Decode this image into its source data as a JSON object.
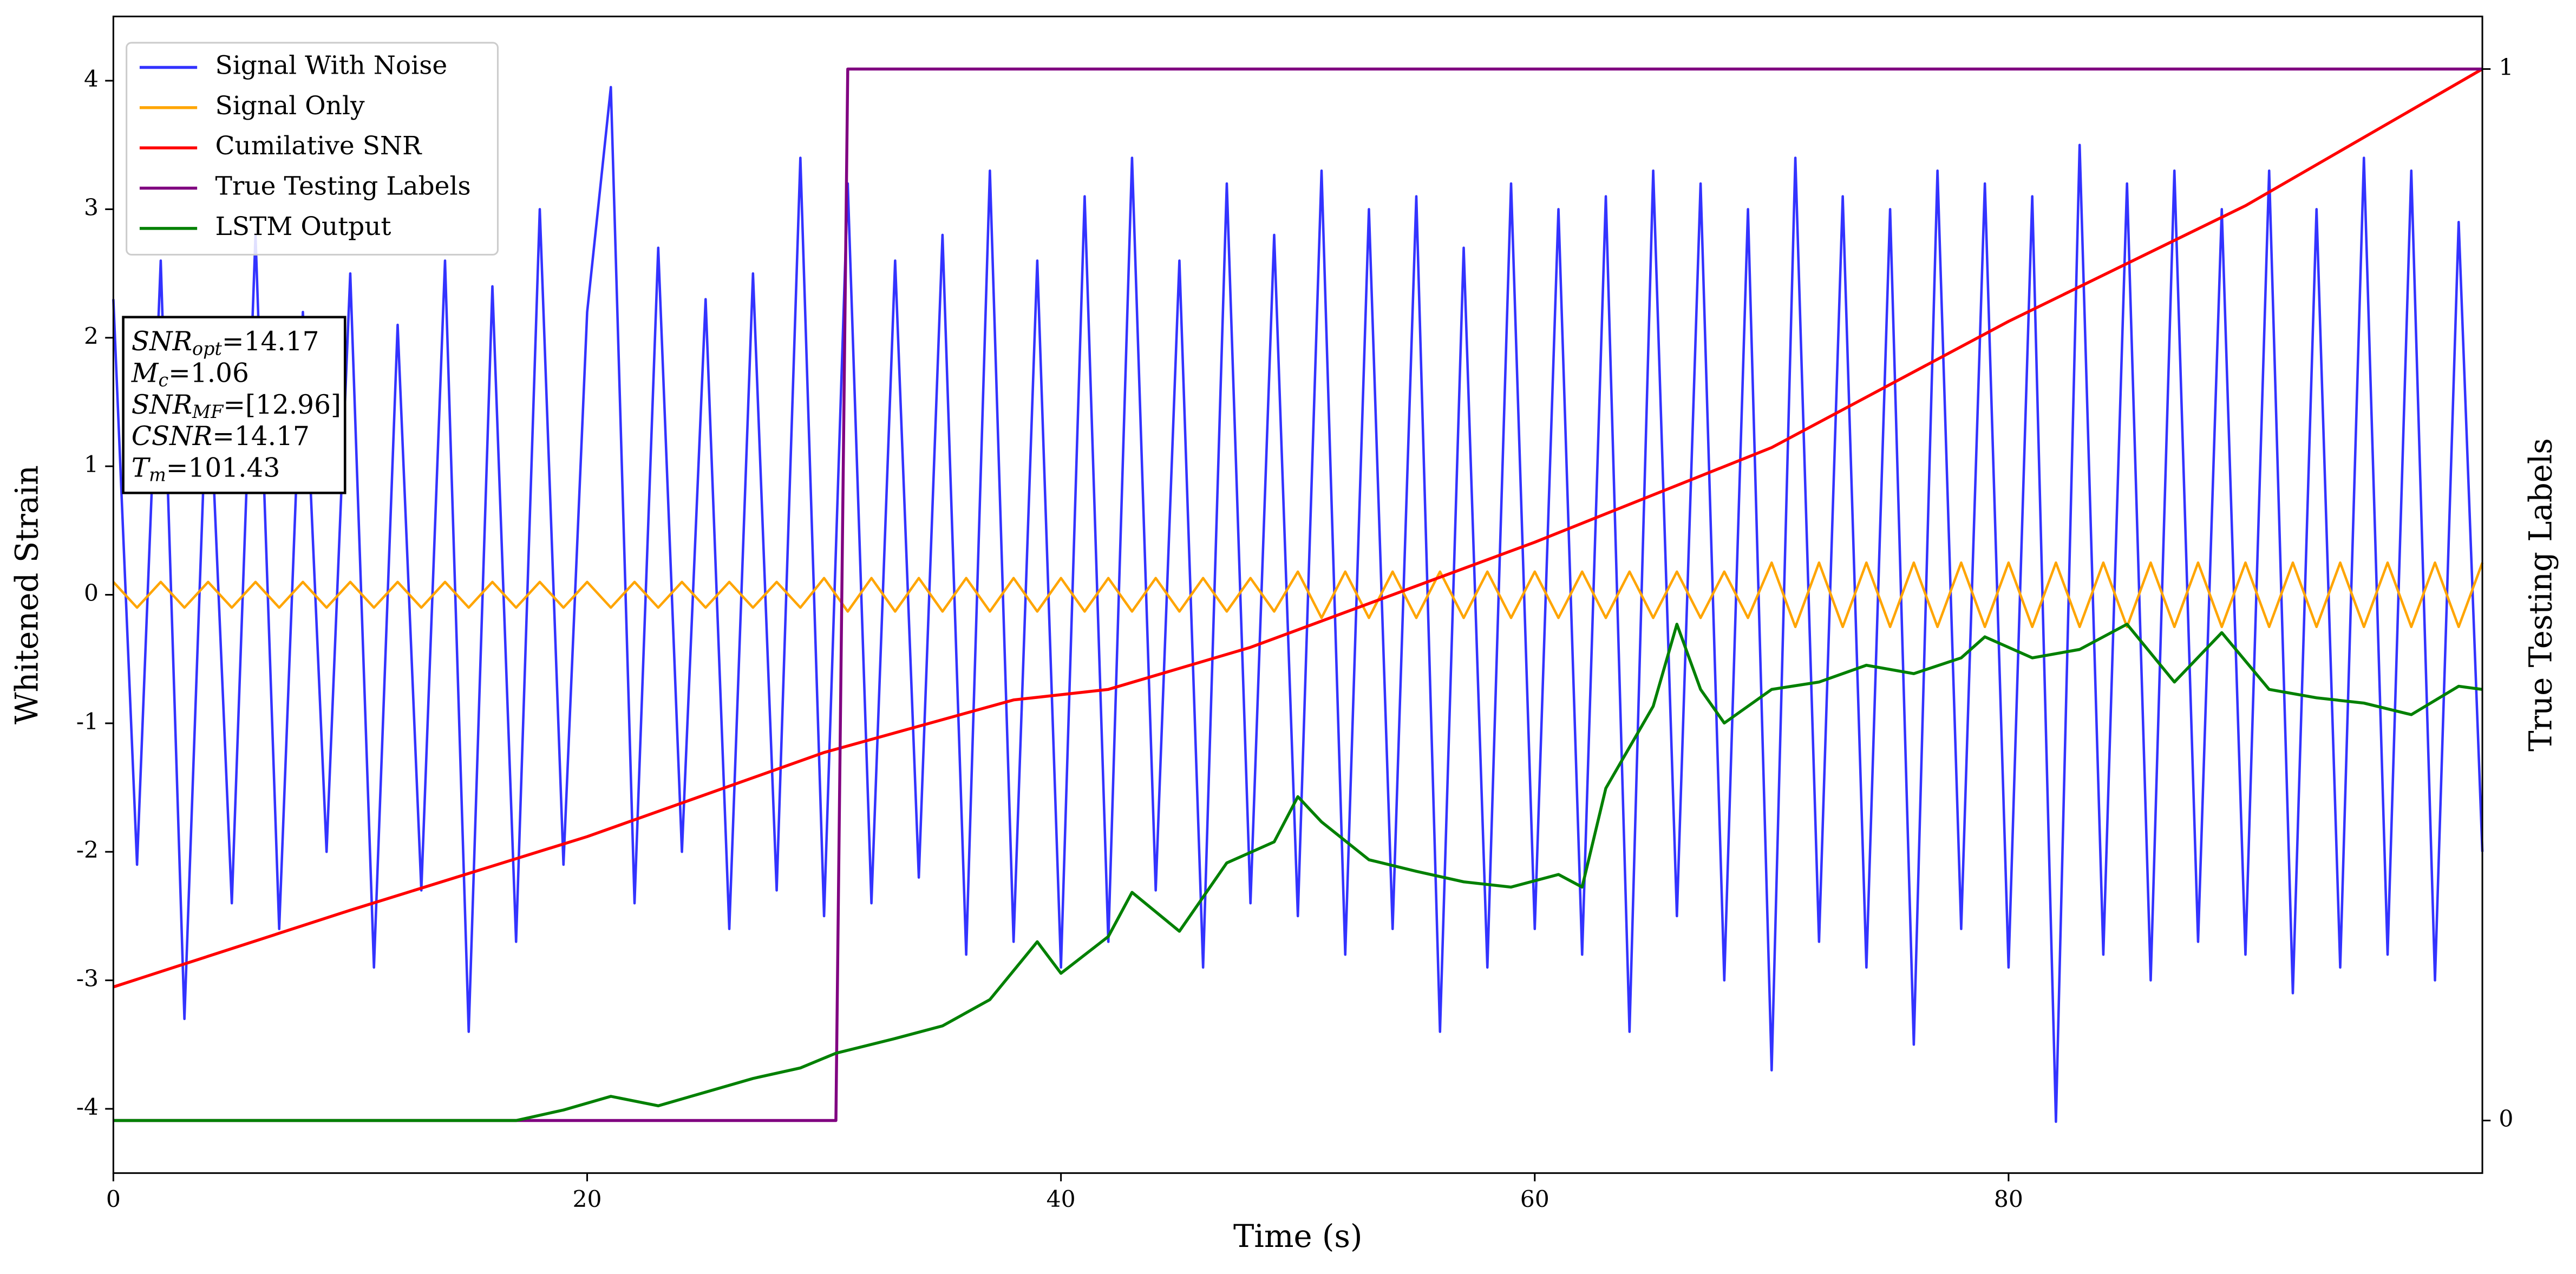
{
  "chart_data": {
    "type": "line",
    "xlabel": "Time (s)",
    "ylabel": "Whitened Strain",
    "y2label": "True Testing Labels",
    "xlim": [
      0,
      100
    ],
    "ylim": [
      -4.5,
      4.5
    ],
    "y2lim": [
      -0.05,
      1.05
    ],
    "xticks": [
      0,
      20,
      40,
      60,
      80
    ],
    "yticks": [
      -4,
      -3,
      -2,
      -1,
      0,
      1,
      2,
      3,
      4
    ],
    "y2ticks": [
      0,
      1
    ],
    "legend": "upper-left",
    "x": [
      0,
      1,
      2,
      3,
      4,
      5,
      6,
      7,
      8,
      9,
      10,
      11,
      12,
      13,
      14,
      15,
      16,
      17,
      18,
      19,
      20,
      21,
      22,
      23,
      24,
      25,
      26,
      27,
      28,
      29,
      30,
      31,
      32,
      33,
      34,
      35,
      36,
      37,
      38,
      39,
      40,
      41,
      42,
      43,
      44,
      45,
      46,
      47,
      48,
      49,
      50,
      51,
      52,
      53,
      54,
      55,
      56,
      57,
      58,
      59,
      60,
      61,
      62,
      63,
      64,
      65,
      66,
      67,
      68,
      69,
      70,
      71,
      72,
      73,
      74,
      75,
      76,
      77,
      78,
      79,
      80,
      81,
      82,
      83,
      84,
      85,
      86,
      87,
      88,
      89,
      90,
      91,
      92,
      93,
      94,
      95,
      96,
      97,
      98,
      99,
      100
    ],
    "series": [
      {
        "name": "Signal With Noise",
        "color": "#3333ff",
        "values": [
          2.3,
          -2.1,
          2.6,
          -3.3,
          1.9,
          -2.4,
          2.8,
          -2.6,
          2.2,
          -2.0,
          2.5,
          -2.9,
          2.1,
          -2.3,
          2.6,
          -3.4,
          2.4,
          -2.7,
          3.0,
          -2.1,
          2.2,
          3.95,
          -2.4,
          2.7,
          -2.0,
          2.3,
          -2.6,
          2.5,
          -2.3,
          3.4,
          -2.5,
          3.2,
          -2.4,
          2.6,
          -2.2,
          2.8,
          -2.8,
          3.3,
          -2.7,
          2.6,
          -2.9,
          3.1,
          -2.7,
          3.4,
          -2.3,
          2.6,
          -2.9,
          3.2,
          -2.4,
          2.8,
          -2.5,
          3.3,
          -2.8,
          3.0,
          -2.6,
          3.1,
          -3.4,
          2.7,
          -2.9,
          3.2,
          -2.6,
          3.0,
          -2.8,
          3.1,
          -3.4,
          3.3,
          -2.5,
          3.2,
          -3.0,
          3.0,
          -3.7,
          3.4,
          -2.7,
          3.1,
          -2.9,
          3.0,
          -3.5,
          3.3,
          -2.6,
          3.2,
          -2.9,
          3.1,
          -4.1,
          3.5,
          -2.8,
          3.2,
          -3.0,
          3.3,
          -2.7,
          3.0,
          -2.8,
          3.3,
          -3.1,
          3.0,
          -2.9,
          3.4,
          -2.8,
          3.3,
          -3.0,
          2.9,
          -2.0
        ]
      },
      {
        "name": "Signal Only",
        "color": "#ffa500",
        "values": [
          0.1,
          -0.1,
          0.1,
          -0.1,
          0.1,
          -0.1,
          0.1,
          -0.1,
          0.1,
          -0.1,
          0.1,
          -0.1,
          0.1,
          -0.1,
          0.1,
          -0.1,
          0.1,
          -0.1,
          0.1,
          -0.1,
          0.1,
          -0.1,
          0.1,
          -0.1,
          0.1,
          -0.1,
          0.1,
          -0.1,
          0.1,
          -0.1,
          0.13,
          -0.13,
          0.13,
          -0.13,
          0.13,
          -0.13,
          0.13,
          -0.13,
          0.13,
          -0.13,
          0.13,
          -0.13,
          0.13,
          -0.13,
          0.13,
          -0.13,
          0.13,
          -0.13,
          0.13,
          -0.13,
          0.18,
          -0.18,
          0.18,
          -0.18,
          0.18,
          -0.18,
          0.18,
          -0.18,
          0.18,
          -0.18,
          0.18,
          -0.18,
          0.18,
          -0.18,
          0.18,
          -0.18,
          0.18,
          -0.18,
          0.18,
          -0.18,
          0.25,
          -0.25,
          0.25,
          -0.25,
          0.25,
          -0.25,
          0.25,
          -0.25,
          0.25,
          -0.25,
          0.25,
          -0.25,
          0.25,
          -0.25,
          0.25,
          -0.25,
          0.25,
          -0.25,
          0.25,
          -0.25,
          0.25,
          -0.25,
          0.25,
          -0.25,
          0.25,
          -0.25,
          0.25,
          -0.25,
          0.25,
          -0.25,
          0.25
        ]
      },
      {
        "name": "Cumilative SNR",
        "color": "#ff0000",
        "axis": "y2",
        "x": [
          0,
          10,
          20,
          30,
          38,
          42,
          48,
          54,
          60,
          70,
          80,
          90,
          100
        ],
        "values": [
          0.127,
          0.2,
          0.27,
          0.35,
          0.4,
          0.41,
          0.45,
          0.5,
          0.55,
          0.64,
          0.76,
          0.87,
          1.0
        ]
      },
      {
        "name": "True Testing Labels",
        "color": "#800080",
        "axis": "y2",
        "x": [
          0,
          30.5,
          31,
          100
        ],
        "values": [
          0,
          0,
          1,
          1
        ]
      },
      {
        "name": "LSTM Output",
        "color": "#008000",
        "axis": "y2",
        "x": [
          0,
          17,
          19,
          21,
          23,
          25,
          27,
          29,
          30.5,
          33,
          35,
          37,
          39,
          40,
          42,
          43,
          45,
          47,
          49,
          50,
          51,
          53,
          55,
          57,
          59,
          61,
          62,
          63,
          64,
          65,
          66,
          67,
          68,
          70,
          72,
          74,
          76,
          78,
          79,
          81,
          83,
          85,
          87,
          89,
          91,
          93,
          95,
          97,
          99,
          100
        ],
        "values": [
          0,
          0,
          0.01,
          0.023,
          0.014,
          0.027,
          0.04,
          0.05,
          0.064,
          0.078,
          0.09,
          0.115,
          0.17,
          0.14,
          0.175,
          0.217,
          0.18,
          0.245,
          0.265,
          0.308,
          0.284,
          0.248,
          0.237,
          0.227,
          0.222,
          0.234,
          0.222,
          0.316,
          0.355,
          0.394,
          0.472,
          0.41,
          0.378,
          0.41,
          0.417,
          0.433,
          0.425,
          0.44,
          0.46,
          0.44,
          0.448,
          0.472,
          0.417,
          0.464,
          0.41,
          0.402,
          0.397,
          0.386,
          0.413,
          0.41
        ]
      }
    ],
    "annotation": [
      {
        "name": "SNR",
        "sub": "opt",
        "text": "=14.17"
      },
      {
        "name": "M",
        "sub": "c",
        "text": "=1.06"
      },
      {
        "name": "SNR",
        "sub": "MF",
        "text": "=[12.96]"
      },
      {
        "name": "CSNR",
        "text": "=14.17"
      },
      {
        "name": "T",
        "sub": "m",
        "text": "=101.43"
      }
    ]
  }
}
